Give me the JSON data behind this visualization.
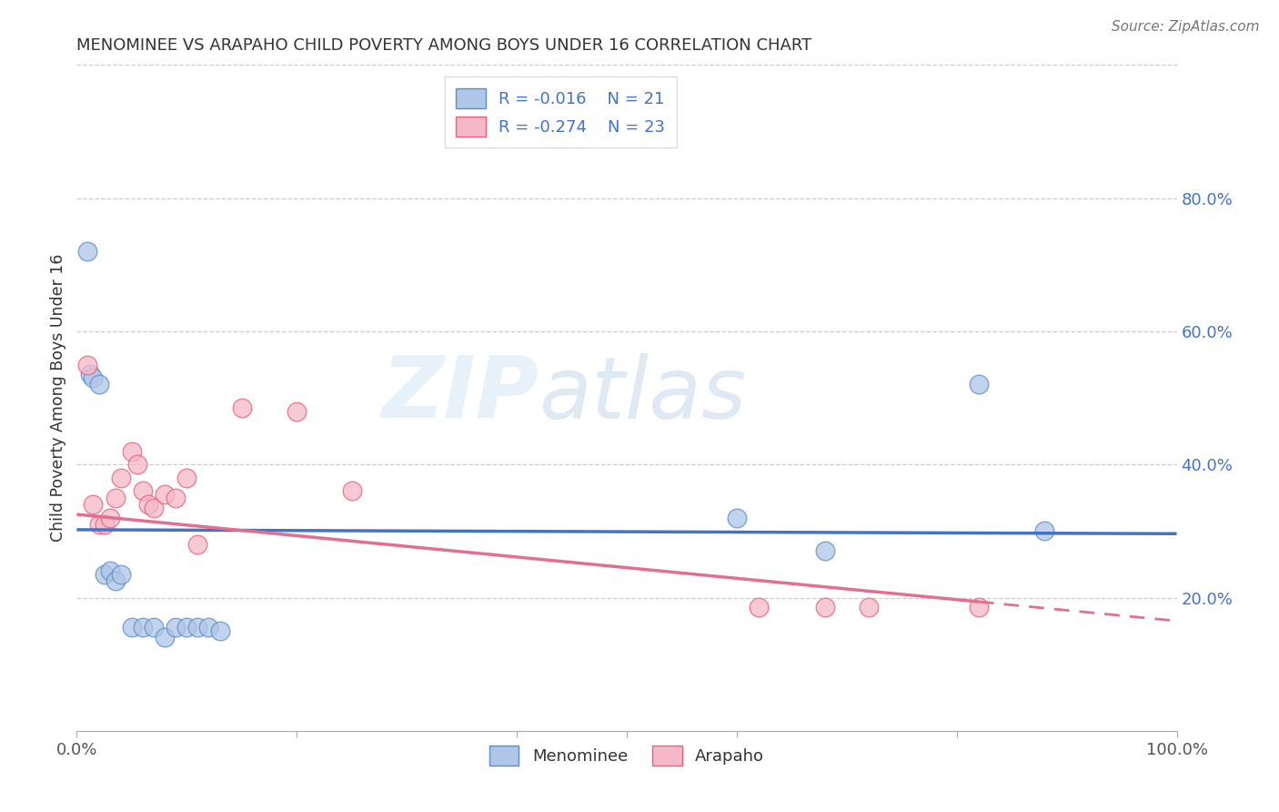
{
  "title": "MENOMINEE VS ARAPAHO CHILD POVERTY AMONG BOYS UNDER 16 CORRELATION CHART",
  "source": "Source: ZipAtlas.com",
  "ylabel": "Child Poverty Among Boys Under 16",
  "xlim": [
    0,
    1.0
  ],
  "ylim": [
    0,
    1.0
  ],
  "ytick_right_labels": [
    "80.0%",
    "60.0%",
    "40.0%",
    "20.0%"
  ],
  "ytick_right_values": [
    0.8,
    0.6,
    0.4,
    0.2
  ],
  "watermark_zip": "ZIP",
  "watermark_atlas": "atlas",
  "legend_r1": "-0.016",
  "legend_n1": "21",
  "legend_r2": "-0.274",
  "legend_n2": "23",
  "menominee_color": "#aec6e8",
  "arapaho_color": "#f5b8c8",
  "menominee_edge_color": "#5b8cc8",
  "arapaho_edge_color": "#e8607a",
  "menominee_line_color": "#4472c4",
  "arapaho_line_color": "#e07090",
  "menominee_scatter_x": [
    0.01,
    0.012,
    0.015,
    0.02,
    0.025,
    0.03,
    0.035,
    0.04,
    0.05,
    0.06,
    0.07,
    0.08,
    0.09,
    0.1,
    0.11,
    0.12,
    0.13,
    0.6,
    0.68,
    0.82,
    0.88
  ],
  "menominee_scatter_y": [
    0.72,
    0.535,
    0.53,
    0.52,
    0.235,
    0.24,
    0.225,
    0.235,
    0.155,
    0.155,
    0.155,
    0.14,
    0.155,
    0.155,
    0.155,
    0.155,
    0.15,
    0.32,
    0.27,
    0.52,
    0.3
  ],
  "arapaho_scatter_x": [
    0.01,
    0.015,
    0.02,
    0.025,
    0.03,
    0.035,
    0.04,
    0.05,
    0.055,
    0.06,
    0.065,
    0.07,
    0.08,
    0.09,
    0.1,
    0.11,
    0.15,
    0.2,
    0.25,
    0.62,
    0.68,
    0.72,
    0.82
  ],
  "arapaho_scatter_y": [
    0.55,
    0.34,
    0.31,
    0.31,
    0.32,
    0.35,
    0.38,
    0.42,
    0.4,
    0.36,
    0.34,
    0.335,
    0.355,
    0.35,
    0.38,
    0.28,
    0.485,
    0.48,
    0.36,
    0.185,
    0.185,
    0.185,
    0.185
  ],
  "background_color": "#ffffff",
  "grid_color": "#cccccc",
  "menominee_trendline_y0": 0.302,
  "menominee_trendline_y1": 0.296,
  "arapaho_trendline_y0": 0.325,
  "arapaho_trendline_y1": 0.165
}
